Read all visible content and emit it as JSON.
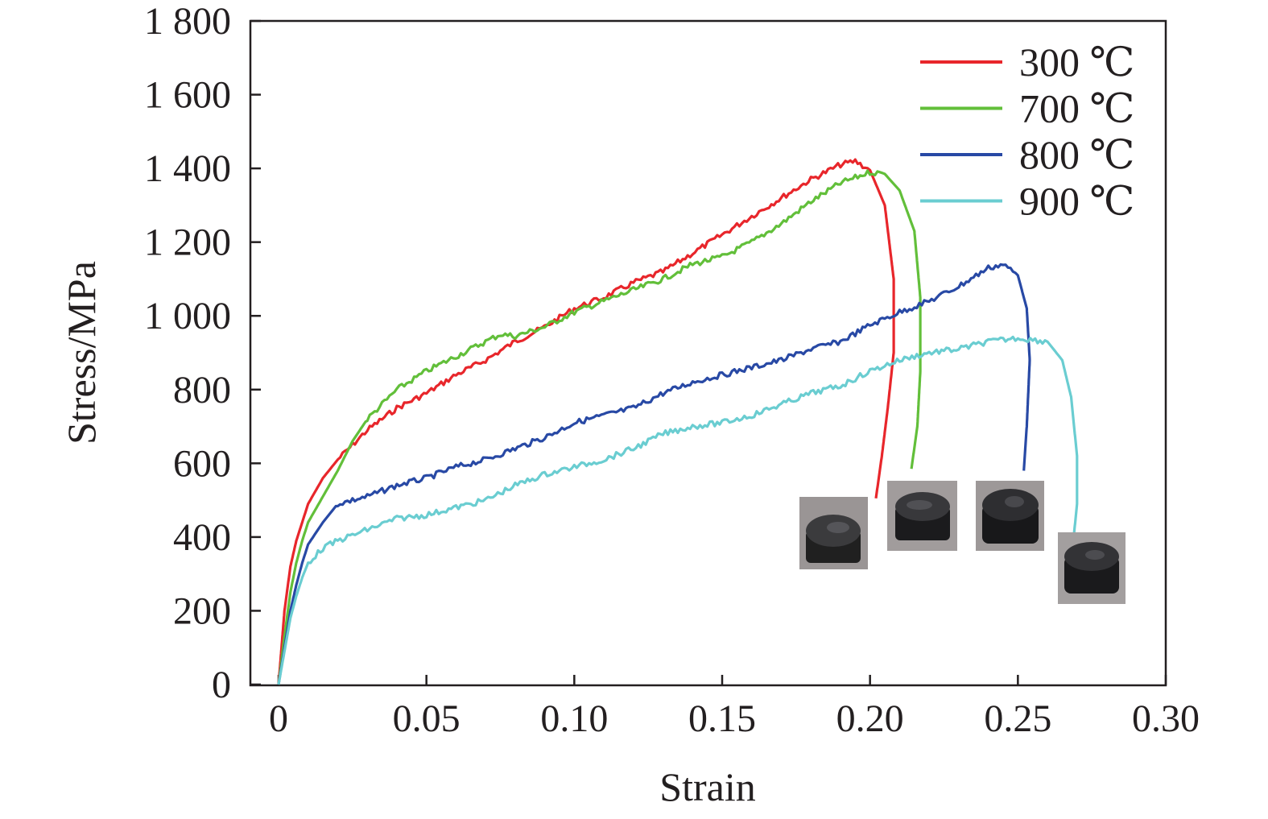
{
  "chart_data": {
    "type": "line",
    "title": "",
    "xlabel": "Strain",
    "ylabel": "Stress/MPa",
    "xlim": [
      -0.01,
      0.3
    ],
    "ylim": [
      0,
      1800
    ],
    "x_ticks": [
      0,
      0.05,
      0.1,
      0.15,
      0.2,
      0.25,
      0.3
    ],
    "x_tick_labels": [
      "0",
      "0.05",
      "0.10",
      "0.15",
      "0.20",
      "0.25",
      "0.30"
    ],
    "y_ticks": [
      0,
      200,
      400,
      600,
      800,
      1000,
      1200,
      1400,
      1600,
      1800
    ],
    "y_tick_labels": [
      "0",
      "200",
      "400",
      "600",
      "800",
      "1 000",
      "1 200",
      "1 400",
      "1 600",
      "1 800"
    ],
    "grid": false,
    "legend_position": "top-right",
    "series": [
      {
        "name": "300 ℃",
        "color": "#e8262b",
        "points": [
          [
            0,
            0
          ],
          [
            0.002,
            200
          ],
          [
            0.004,
            320
          ],
          [
            0.006,
            390
          ],
          [
            0.008,
            440
          ],
          [
            0.01,
            490
          ],
          [
            0.015,
            560
          ],
          [
            0.02,
            610
          ],
          [
            0.025,
            650
          ],
          [
            0.03,
            690
          ],
          [
            0.04,
            750
          ],
          [
            0.05,
            790
          ],
          [
            0.06,
            840
          ],
          [
            0.07,
            880
          ],
          [
            0.08,
            930
          ],
          [
            0.09,
            970
          ],
          [
            0.1,
            1020
          ],
          [
            0.11,
            1050
          ],
          [
            0.12,
            1090
          ],
          [
            0.13,
            1120
          ],
          [
            0.14,
            1170
          ],
          [
            0.15,
            1220
          ],
          [
            0.16,
            1270
          ],
          [
            0.17,
            1320
          ],
          [
            0.18,
            1370
          ],
          [
            0.19,
            1410
          ],
          [
            0.195,
            1420
          ],
          [
            0.2,
            1395
          ],
          [
            0.205,
            1300
          ],
          [
            0.208,
            1100
          ],
          [
            0.208,
            900
          ],
          [
            0.206,
            750
          ],
          [
            0.204,
            620
          ],
          [
            0.202,
            505
          ]
        ]
      },
      {
        "name": "700 ℃",
        "color": "#62bf3a",
        "points": [
          [
            0,
            0
          ],
          [
            0.002,
            130
          ],
          [
            0.004,
            250
          ],
          [
            0.006,
            330
          ],
          [
            0.008,
            390
          ],
          [
            0.01,
            440
          ],
          [
            0.015,
            510
          ],
          [
            0.02,
            580
          ],
          [
            0.025,
            660
          ],
          [
            0.03,
            720
          ],
          [
            0.04,
            800
          ],
          [
            0.05,
            850
          ],
          [
            0.06,
            890
          ],
          [
            0.07,
            930
          ],
          [
            0.075,
            950
          ],
          [
            0.08,
            945
          ],
          [
            0.09,
            970
          ],
          [
            0.1,
            1010
          ],
          [
            0.11,
            1040
          ],
          [
            0.12,
            1070
          ],
          [
            0.13,
            1100
          ],
          [
            0.14,
            1140
          ],
          [
            0.15,
            1160
          ],
          [
            0.16,
            1200
          ],
          [
            0.17,
            1250
          ],
          [
            0.18,
            1310
          ],
          [
            0.19,
            1360
          ],
          [
            0.2,
            1390
          ],
          [
            0.205,
            1385
          ],
          [
            0.21,
            1340
          ],
          [
            0.215,
            1230
          ],
          [
            0.217,
            1050
          ],
          [
            0.217,
            850
          ],
          [
            0.216,
            700
          ],
          [
            0.214,
            585
          ]
        ]
      },
      {
        "name": "800 ℃",
        "color": "#2849a5",
        "points": [
          [
            0,
            0
          ],
          [
            0.002,
            100
          ],
          [
            0.004,
            200
          ],
          [
            0.006,
            270
          ],
          [
            0.008,
            330
          ],
          [
            0.01,
            380
          ],
          [
            0.015,
            440
          ],
          [
            0.02,
            490
          ],
          [
            0.03,
            510
          ],
          [
            0.04,
            540
          ],
          [
            0.05,
            560
          ],
          [
            0.06,
            590
          ],
          [
            0.07,
            610
          ],
          [
            0.08,
            640
          ],
          [
            0.09,
            670
          ],
          [
            0.1,
            710
          ],
          [
            0.11,
            730
          ],
          [
            0.12,
            750
          ],
          [
            0.13,
            790
          ],
          [
            0.14,
            820
          ],
          [
            0.15,
            840
          ],
          [
            0.16,
            860
          ],
          [
            0.17,
            880
          ],
          [
            0.18,
            910
          ],
          [
            0.19,
            930
          ],
          [
            0.2,
            975
          ],
          [
            0.21,
            1010
          ],
          [
            0.22,
            1040
          ],
          [
            0.23,
            1080
          ],
          [
            0.24,
            1130
          ],
          [
            0.245,
            1140
          ],
          [
            0.25,
            1110
          ],
          [
            0.253,
            1020
          ],
          [
            0.254,
            880
          ],
          [
            0.253,
            700
          ],
          [
            0.252,
            580
          ]
        ]
      },
      {
        "name": "900 ℃",
        "color": "#6acdd1",
        "points": [
          [
            0,
            0
          ],
          [
            0.002,
            90
          ],
          [
            0.004,
            180
          ],
          [
            0.006,
            240
          ],
          [
            0.008,
            290
          ],
          [
            0.01,
            330
          ],
          [
            0.015,
            370
          ],
          [
            0.02,
            390
          ],
          [
            0.03,
            420
          ],
          [
            0.04,
            450
          ],
          [
            0.05,
            460
          ],
          [
            0.06,
            480
          ],
          [
            0.07,
            500
          ],
          [
            0.08,
            540
          ],
          [
            0.09,
            570
          ],
          [
            0.1,
            590
          ],
          [
            0.11,
            610
          ],
          [
            0.12,
            640
          ],
          [
            0.13,
            680
          ],
          [
            0.14,
            700
          ],
          [
            0.15,
            710
          ],
          [
            0.16,
            730
          ],
          [
            0.17,
            760
          ],
          [
            0.18,
            790
          ],
          [
            0.19,
            810
          ],
          [
            0.2,
            850
          ],
          [
            0.21,
            880
          ],
          [
            0.22,
            900
          ],
          [
            0.23,
            910
          ],
          [
            0.24,
            930
          ],
          [
            0.25,
            940
          ],
          [
            0.26,
            930
          ],
          [
            0.265,
            880
          ],
          [
            0.268,
            780
          ],
          [
            0.27,
            620
          ],
          [
            0.27,
            490
          ],
          [
            0.269,
            410
          ]
        ]
      }
    ]
  }
}
